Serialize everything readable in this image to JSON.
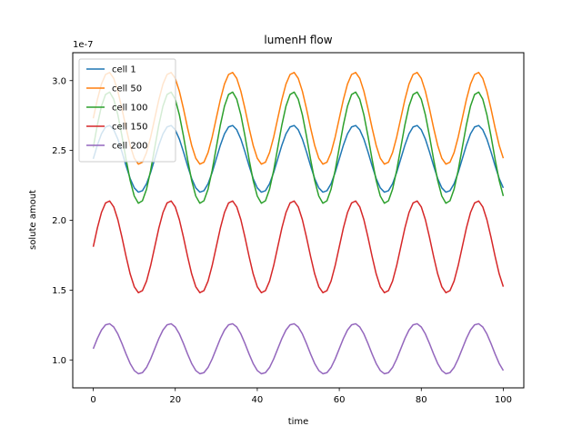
{
  "chart_data": {
    "type": "line",
    "title": "lumenH flow",
    "xlabel": "time",
    "ylabel": "solute amout",
    "y_offset_label": "1e-7",
    "xlim": [
      -5,
      105
    ],
    "ylim": [
      0.8,
      3.2
    ],
    "x_ticks": [
      0,
      20,
      40,
      60,
      80,
      100
    ],
    "x_tick_labels": [
      "0",
      "20",
      "40",
      "60",
      "80",
      "100"
    ],
    "y_ticks": [
      1.0,
      1.5,
      2.0,
      2.5,
      3.0
    ],
    "y_tick_labels": [
      "1.0",
      "1.5",
      "2.0",
      "2.5",
      "3.0"
    ],
    "grid": false,
    "legend_position": "top-left",
    "x_range": [
      0,
      100
    ],
    "period": 15,
    "series": [
      {
        "name": "cell 1",
        "color": "#1f77b4",
        "mean": 2.44,
        "amplitude": 0.24,
        "phase": 0.0
      },
      {
        "name": "cell 50",
        "color": "#ff7f0e",
        "mean": 2.73,
        "amplitude": 0.33,
        "phase": 0.0
      },
      {
        "name": "cell 100",
        "color": "#2ca02c",
        "mean": 2.52,
        "amplitude": 0.4,
        "phase": 0.0
      },
      {
        "name": "cell 150",
        "color": "#d62728",
        "mean": 1.81,
        "amplitude": 0.33,
        "phase": 0.0
      },
      {
        "name": "cell 200",
        "color": "#9467bd",
        "mean": 1.08,
        "amplitude": 0.18,
        "phase": 0.0
      }
    ]
  }
}
